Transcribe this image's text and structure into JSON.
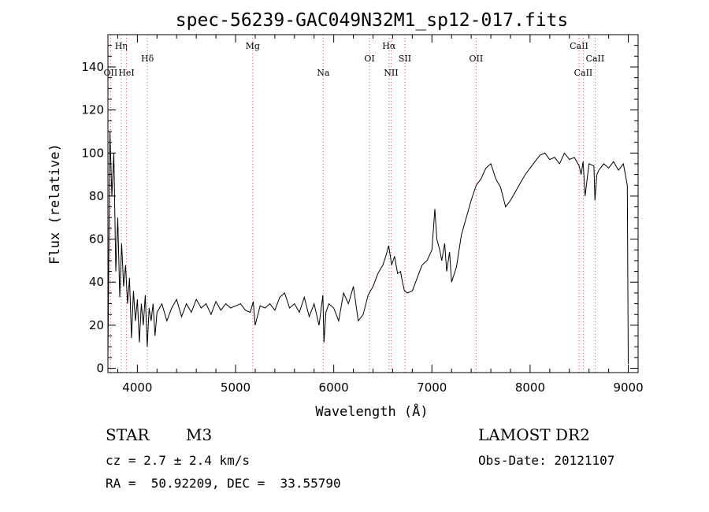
{
  "chart_data": {
    "type": "line",
    "title": "spec-56239-GAC049N32M1_sp12-017.fits",
    "xlabel": "Wavelength (Å)",
    "ylabel": "Flux (relative)",
    "xlim": [
      3700,
      9100
    ],
    "ylim": [
      -2,
      155
    ],
    "x_ticks": [
      4000,
      5000,
      6000,
      7000,
      8000,
      9000
    ],
    "y_ticks": [
      0,
      20,
      40,
      60,
      80,
      100,
      120,
      140
    ],
    "grid": false,
    "series": [
      {
        "x": [
          3700,
          3720,
          3740,
          3760,
          3780,
          3800,
          3820,
          3840,
          3860,
          3880,
          3900,
          3920,
          3940,
          3960,
          3980,
          4000,
          4020,
          4040,
          4060,
          4080,
          4100,
          4120,
          4140,
          4160,
          4180,
          4200,
          4250,
          4300,
          4350,
          4400,
          4450,
          4500,
          4550,
          4600,
          4650,
          4700,
          4750,
          4800,
          4850,
          4900,
          4950,
          5000,
          5050,
          5100,
          5150,
          5180,
          5200,
          5250,
          5300,
          5350,
          5400,
          5450,
          5500,
          5550,
          5600,
          5650,
          5700,
          5750,
          5800,
          5850,
          5890,
          5900,
          5920,
          5950,
          6000,
          6050,
          6100,
          6150,
          6200,
          6250,
          6300,
          6350,
          6400,
          6450,
          6500,
          6530,
          6560,
          6590,
          6620,
          6650,
          6680,
          6700,
          6720,
          6750,
          6800,
          6850,
          6900,
          6950,
          7000,
          7030,
          7050,
          7080,
          7100,
          7130,
          7150,
          7180,
          7200,
          7250,
          7300,
          7350,
          7400,
          7450,
          7500,
          7550,
          7600,
          7650,
          7700,
          7750,
          7800,
          7850,
          7900,
          7950,
          8000,
          8050,
          8100,
          8150,
          8200,
          8250,
          8300,
          8350,
          8400,
          8450,
          8500,
          8520,
          8540,
          8560,
          8600,
          8650,
          8660,
          8680,
          8700,
          8750,
          8800,
          8850,
          8900,
          8950,
          8970,
          8990,
          9000
        ],
        "y": [
          5,
          110,
          80,
          100,
          45,
          70,
          33,
          58,
          38,
          48,
          30,
          42,
          14,
          36,
          22,
          32,
          12,
          30,
          20,
          34,
          10,
          28,
          22,
          30,
          15,
          26,
          30,
          22,
          28,
          32,
          24,
          30,
          26,
          32,
          28,
          30,
          25,
          31,
          27,
          30,
          28,
          29,
          30,
          27,
          26,
          31,
          20,
          29,
          28,
          30,
          27,
          33,
          35,
          28,
          30,
          26,
          33,
          24,
          30,
          20,
          34,
          12,
          26,
          30,
          28,
          22,
          35,
          30,
          38,
          22,
          25,
          34,
          38,
          44,
          48,
          52,
          57,
          48,
          52,
          44,
          45,
          40,
          36,
          35,
          36,
          42,
          48,
          50,
          55,
          74,
          60,
          55,
          50,
          58,
          45,
          54,
          40,
          47,
          62,
          70,
          78,
          85,
          88,
          93,
          95,
          88,
          84,
          75,
          78,
          82,
          86,
          90,
          93,
          96,
          99,
          100,
          97,
          98,
          95,
          100,
          97,
          98,
          94,
          90,
          96,
          80,
          95,
          94,
          78,
          90,
          92,
          95,
          93,
          96,
          92,
          95,
          90,
          85,
          2
        ]
      }
    ],
    "line_markers": [
      {
        "label": "Hη",
        "wavelength": 3835,
        "row": 0
      },
      {
        "label": "OII",
        "wavelength": 3727,
        "row": 2
      },
      {
        "label": "HeI",
        "wavelength": 3889,
        "row": 2
      },
      {
        "label": "Hδ",
        "wavelength": 4102,
        "row": 1
      },
      {
        "label": "Mg",
        "wavelength": 5175,
        "row": 0
      },
      {
        "label": "Na",
        "wavelength": 5893,
        "row": 2
      },
      {
        "label": "OI",
        "wavelength": 6364,
        "row": 1
      },
      {
        "label": "Hα",
        "wavelength": 6563,
        "row": 0
      },
      {
        "label": "NII",
        "wavelength": 6584,
        "row": 2
      },
      {
        "label": "SII",
        "wavelength": 6725,
        "row": 1
      },
      {
        "label": "OII",
        "wavelength": 7450,
        "row": 1
      },
      {
        "label": "CaII",
        "wavelength": 8498,
        "row": 0
      },
      {
        "label": "CaII",
        "wavelength": 8542,
        "row": 2
      },
      {
        "label": "CaII",
        "wavelength": 8662,
        "row": 1
      }
    ],
    "marker_color": "#d9534f",
    "line_color": "#000000"
  },
  "info": {
    "object_class": "STAR",
    "subclass": "M3",
    "survey": "LAMOST DR2",
    "redshift": "cz = 2.7 ± 2.4 km/s",
    "obs_date": "Obs-Date: 20121107",
    "coords": "RA =  50.92209, DEC =  33.55790"
  }
}
